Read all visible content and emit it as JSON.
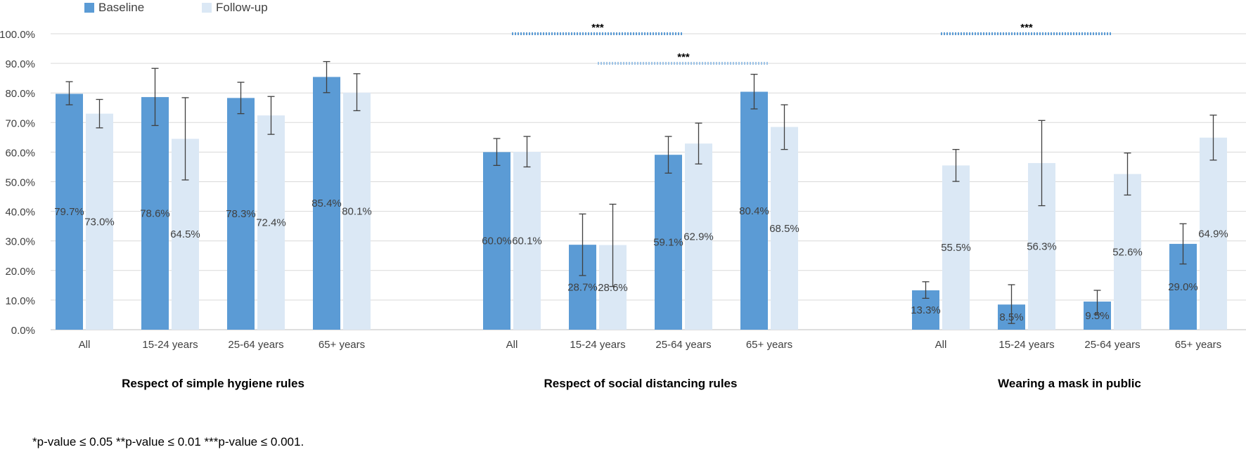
{
  "colors": {
    "baseline": "#5b9bd5",
    "followup": "#dbe8f5",
    "grid": "#d9d9d9",
    "axis_text": "#404040",
    "sig_dark": "#5b9bd5",
    "sig_light": "#9dc3e6"
  },
  "legend": [
    {
      "label": "Baseline",
      "color_key": "baseline"
    },
    {
      "label": "Follow-up",
      "color_key": "followup"
    }
  ],
  "footnote": "*p-value ≤ 0.05 **p-value ≤ 0.01 ***p-value ≤ 0.001.",
  "chart_data": {
    "type": "bar",
    "ylim": [
      0,
      100
    ],
    "yticks": [
      "0.0%",
      "10.0%",
      "20.0%",
      "30.0%",
      "40.0%",
      "50.0%",
      "60.0%",
      "70.0%",
      "80.0%",
      "90.0%",
      "100.0%"
    ],
    "grid": true,
    "legend_position": "top-left",
    "series": [
      {
        "name": "Baseline",
        "color_key": "baseline"
      },
      {
        "name": "Follow-up",
        "color_key": "followup"
      }
    ],
    "groups": [
      {
        "title": "Respect of simple hygiene rules",
        "categories": [
          "All",
          "15-24 years",
          "25-64 years",
          "65+ years"
        ],
        "baseline": [
          79.7,
          78.6,
          78.3,
          85.4
        ],
        "followup": [
          73.0,
          64.5,
          72.4,
          80.1
        ],
        "baseline_labels": [
          "79.7%",
          "78.6%",
          "78.3%",
          "85.4%"
        ],
        "followup_labels": [
          "73.0%",
          "64.5%",
          "72.4%",
          "80.1%"
        ],
        "baseline_err": [
          [
            76.0,
            83.8
          ],
          [
            69.0,
            88.3
          ],
          [
            73.0,
            83.6
          ],
          [
            80.1,
            90.6
          ]
        ],
        "followup_err": [
          [
            68.2,
            77.8
          ],
          [
            50.6,
            78.4
          ],
          [
            66.0,
            78.8
          ],
          [
            74.0,
            86.5
          ]
        ],
        "significance": []
      },
      {
        "title": "Respect of social distancing rules",
        "categories": [
          "All",
          "15-24 years",
          "25-64 years",
          "65+ years"
        ],
        "baseline": [
          60.0,
          28.7,
          59.1,
          80.4
        ],
        "followup": [
          60.1,
          28.6,
          62.9,
          68.5
        ],
        "baseline_labels": [
          "60.0%",
          "28.7%",
          "59.1%",
          "80.4%"
        ],
        "followup_labels": [
          "60.1%",
          "28.6%",
          "62.9%",
          "68.5%"
        ],
        "baseline_err": [
          [
            55.5,
            64.6
          ],
          [
            18.3,
            39.1
          ],
          [
            52.9,
            65.3
          ],
          [
            74.6,
            86.3
          ]
        ],
        "followup_err": [
          [
            55.0,
            65.3
          ],
          [
            14.6,
            42.4
          ],
          [
            56.0,
            69.8
          ],
          [
            60.9,
            76.0
          ]
        ],
        "significance": [
          {
            "label": "***",
            "y": 100,
            "from": 0,
            "to": 2,
            "style": "dark"
          },
          {
            "label": "***",
            "y": 90,
            "from": 1,
            "to": 3,
            "style": "light"
          }
        ]
      },
      {
        "title": "Wearing a mask in public",
        "categories": [
          "All",
          "15-24 years",
          "25-64 years",
          "65+ years"
        ],
        "baseline": [
          13.3,
          8.5,
          9.5,
          29.0
        ],
        "followup": [
          55.5,
          56.3,
          52.6,
          64.9
        ],
        "baseline_labels": [
          "13.3%",
          "8.5%",
          "9.5%",
          "29.0%"
        ],
        "followup_labels": [
          "55.5%",
          "56.3%",
          "52.6%",
          "64.9%"
        ],
        "baseline_err": [
          [
            10.6,
            16.2
          ],
          [
            2.1,
            15.2
          ],
          [
            5.3,
            13.3
          ],
          [
            22.2,
            35.8
          ]
        ],
        "followup_err": [
          [
            50.1,
            60.9
          ],
          [
            41.9,
            70.7
          ],
          [
            45.5,
            59.7
          ],
          [
            57.3,
            72.5
          ]
        ],
        "significance": [
          {
            "label": "***",
            "y": 100,
            "from": 0,
            "to": 2,
            "style": "dark"
          }
        ]
      }
    ]
  }
}
